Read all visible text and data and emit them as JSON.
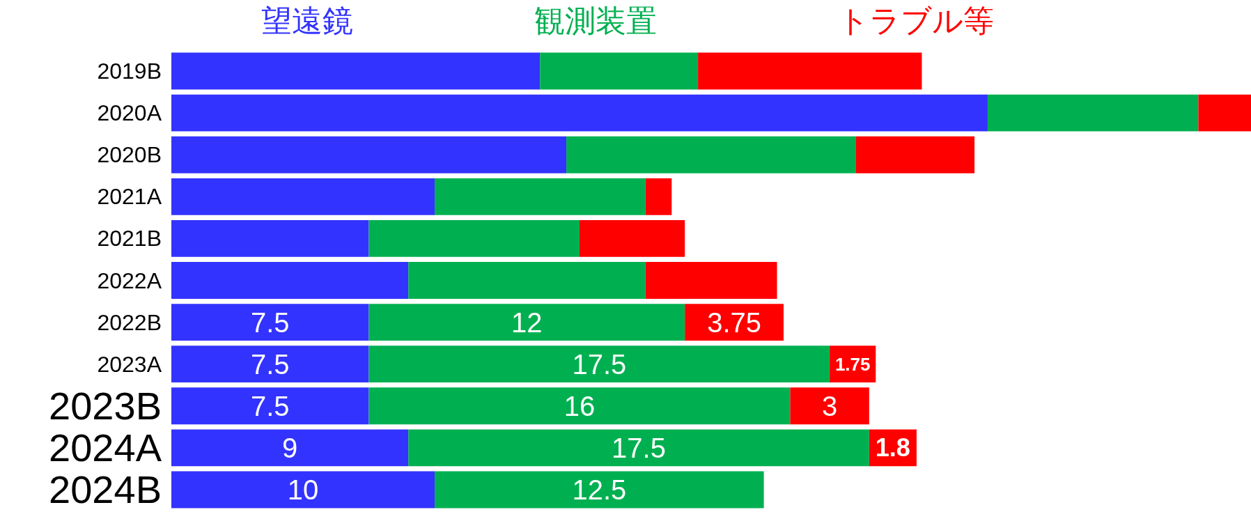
{
  "chart_data": {
    "type": "bar",
    "orientation": "horizontal",
    "stacked": true,
    "legend": "top",
    "categories": [
      "2019B",
      "2020A",
      "2020B",
      "2021A",
      "2021B",
      "2022A",
      "2022B",
      "2023A",
      "2023B",
      "2024A",
      "2024B"
    ],
    "series": [
      {
        "name": "望遠鏡",
        "color": "#3333ff",
        "values": [
          14,
          31,
          15,
          10,
          7.5,
          9,
          7.5,
          7.5,
          7.5,
          9,
          10
        ],
        "value_labels": [
          null,
          null,
          null,
          null,
          null,
          null,
          "7.5",
          "7.5",
          "7.5",
          "9",
          "10"
        ]
      },
      {
        "name": "観測装置",
        "color": "#00b050",
        "values": [
          6,
          8,
          11,
          8,
          8,
          9,
          12,
          17.5,
          16,
          17.5,
          12.5
        ],
        "value_labels": [
          null,
          null,
          null,
          null,
          null,
          null,
          "12",
          "17.5",
          "16",
          "17.5",
          "12.5"
        ]
      },
      {
        "name": "トラブル等",
        "color": "#ff0000",
        "values": [
          8.5,
          2,
          4.5,
          1,
          4,
          5,
          3.75,
          1.75,
          3,
          1.8,
          null
        ],
        "value_labels": [
          null,
          null,
          null,
          null,
          null,
          null,
          "3.75",
          "1.75",
          "3",
          "1.8",
          null
        ]
      }
    ]
  }
}
